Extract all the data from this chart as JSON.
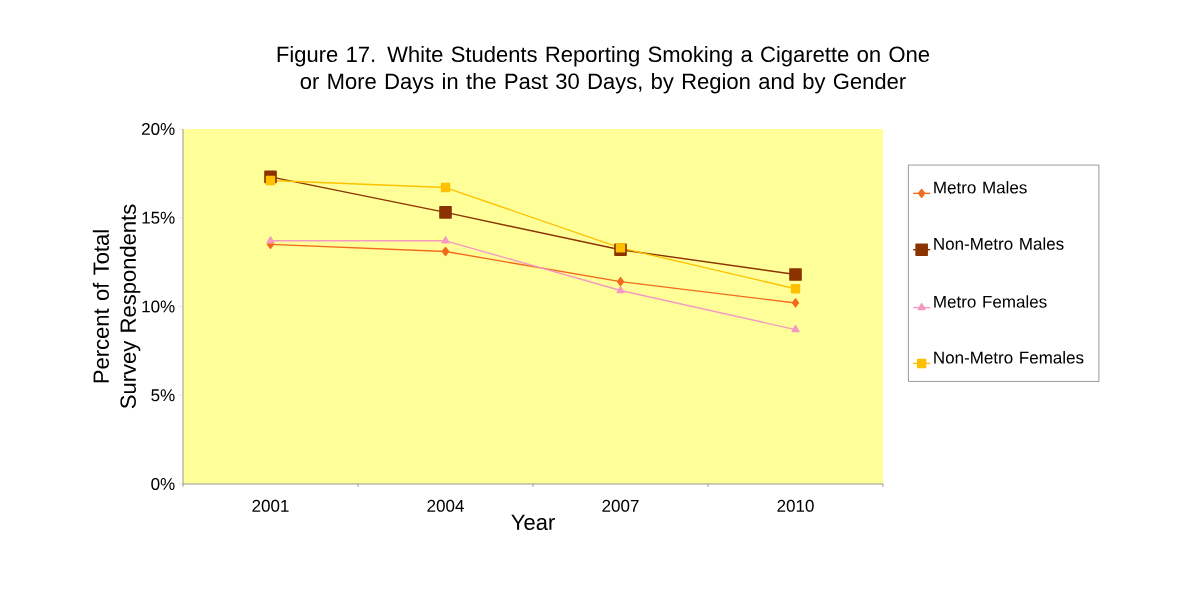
{
  "chart_data": {
    "type": "line",
    "title": "Figure 17. White Students Reporting Smoking a Cigarette on One or More Days in the Past 30 Days, by Region and by Gender",
    "xlabel": "Year",
    "ylabel": "Percent of Total Survey Respondents",
    "categories": [
      "2001",
      "2004",
      "2007",
      "2010"
    ],
    "ylim": [
      0,
      20
    ],
    "yticks": [
      {
        "value": 0,
        "label": "0%"
      },
      {
        "value": 5,
        "label": "5%"
      },
      {
        "value": 10,
        "label": "10%"
      },
      {
        "value": 15,
        "label": "15%"
      },
      {
        "value": 20,
        "label": "20%"
      }
    ],
    "legend": "right",
    "series": [
      {
        "name": "Metro Males",
        "color": "#f26b1d",
        "marker": "diamond",
        "values": [
          13.5,
          13.1,
          11.4,
          10.2
        ]
      },
      {
        "name": "Non-Metro Males",
        "color": "#8b3300",
        "marker": "square",
        "values": [
          17.3,
          15.3,
          13.2,
          11.8
        ]
      },
      {
        "name": "Metro Females",
        "color": "#f49ac1",
        "marker": "triangle",
        "values": [
          13.7,
          13.7,
          10.9,
          8.7
        ]
      },
      {
        "name": "Non-Metro Females",
        "color": "#ffc000",
        "marker": "square",
        "values": [
          17.1,
          16.7,
          13.3,
          11.0
        ]
      }
    ]
  }
}
